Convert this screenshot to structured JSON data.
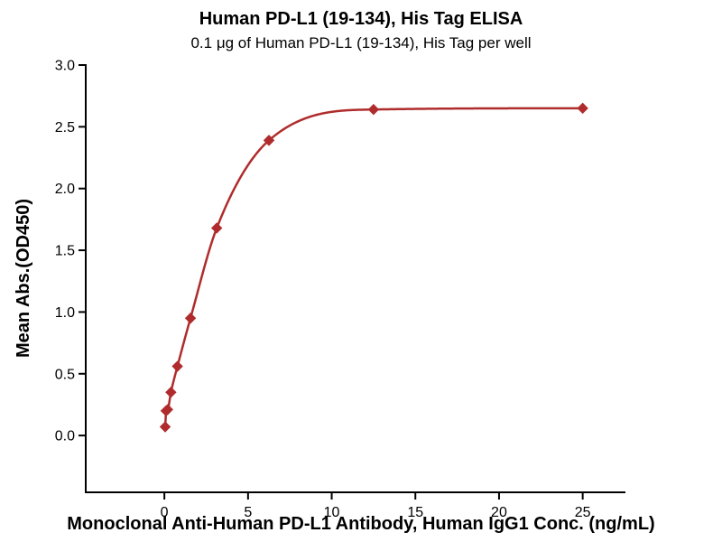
{
  "page": {
    "background": "#ffffff"
  },
  "chart_data": {
    "type": "line",
    "title": "Human PD-L1 (19-134), His Tag ELISA",
    "subtitle": "0.1 μg of Human PD-L1 (19-134), His Tag per well",
    "xlabel": "Monoclonal Anti-Human PD-L1 Antibody, Human IgG1 Conc. (ng/mL)",
    "ylabel": "Mean Abs.(OD450)",
    "series": [
      {
        "name": "Human PD-L1 (19-134), His Tag",
        "marker": "diamond",
        "color": "#b02c2c",
        "x": [
          0.049,
          0.098,
          0.195,
          0.39,
          0.78,
          1.56,
          3.13,
          6.25,
          12.5,
          25
        ],
        "y": [
          0.07,
          0.2,
          0.21,
          0.35,
          0.56,
          0.95,
          1.68,
          2.39,
          2.64,
          2.65
        ]
      }
    ],
    "x_ticks": {
      "values": [
        0,
        5,
        10,
        15,
        20,
        25
      ],
      "labels": [
        "0",
        "5",
        "10",
        "15",
        "20",
        "25"
      ]
    },
    "y_ticks": {
      "values": [
        0,
        0.5,
        1,
        1.5,
        2,
        2.5,
        3
      ],
      "labels": [
        "0.0",
        "0.5",
        "1.0",
        "1.5",
        "2.0",
        "2.5",
        "3.0"
      ]
    },
    "xlim": [
      -4.7,
      27.5
    ],
    "ylim": [
      -0.46,
      3.0
    ],
    "grid": false,
    "legend": "none"
  }
}
